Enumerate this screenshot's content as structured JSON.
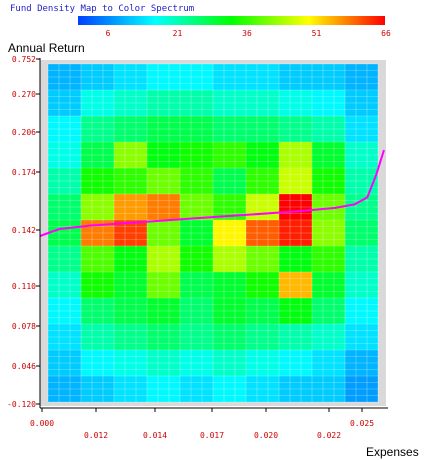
{
  "chart_data": {
    "type": "heatmap",
    "title": "Fund Density Map to Color Spectrum",
    "ylabel": "Annual Return",
    "xlabel": "Expenses",
    "colorbar": {
      "ticks": [
        "6",
        "21",
        "36",
        "51",
        "66"
      ],
      "range": [
        0,
        66
      ],
      "stops": [
        "#0040ff",
        "#00ffff",
        "#00ff00",
        "#ffff00",
        "#ff0000"
      ]
    },
    "y_ticks": [
      "0.752",
      "0.270",
      "0.206",
      "0.174",
      "0.142",
      "0.110",
      "0.078",
      "0.046",
      "-0.120"
    ],
    "x_ticks_row1": [
      "0.000",
      "0.025"
    ],
    "x_ticks_row2": [
      "0.012",
      "0.014",
      "0.017",
      "0.020",
      "0.022"
    ],
    "label_color": "#cc0000",
    "plot_background": "#d9d9d9",
    "grid_lines": true,
    "curve_color": "#ff00ff",
    "grid": [
      [
        10,
        12,
        14,
        16,
        16,
        14,
        14,
        12,
        12,
        10
      ],
      [
        12,
        18,
        20,
        22,
        22,
        20,
        20,
        18,
        16,
        12
      ],
      [
        16,
        24,
        26,
        28,
        28,
        26,
        26,
        24,
        22,
        14
      ],
      [
        18,
        28,
        42,
        32,
        34,
        36,
        32,
        44,
        30,
        20
      ],
      [
        22,
        34,
        36,
        40,
        36,
        28,
        36,
        46,
        34,
        22
      ],
      [
        26,
        42,
        56,
        58,
        40,
        36,
        46,
        66,
        40,
        24
      ],
      [
        28,
        58,
        62,
        40,
        30,
        50,
        60,
        64,
        42,
        26
      ],
      [
        24,
        38,
        32,
        44,
        34,
        44,
        40,
        32,
        36,
        22
      ],
      [
        20,
        34,
        30,
        40,
        28,
        30,
        34,
        54,
        30,
        20
      ],
      [
        16,
        26,
        28,
        30,
        26,
        30,
        28,
        32,
        26,
        16
      ],
      [
        14,
        22,
        24,
        26,
        24,
        26,
        24,
        22,
        20,
        14
      ],
      [
        12,
        16,
        18,
        20,
        18,
        20,
        18,
        16,
        14,
        10
      ],
      [
        10,
        12,
        14,
        16,
        14,
        16,
        14,
        12,
        12,
        8
      ]
    ],
    "curve": {
      "x": [
        0.0,
        0.0015,
        0.004,
        0.008,
        0.012,
        0.016,
        0.02,
        0.023,
        0.0245,
        0.0255,
        0.0262,
        0.0268
      ],
      "y": [
        0.14,
        0.144,
        0.146,
        0.148,
        0.15,
        0.152,
        0.154,
        0.156,
        0.158,
        0.162,
        0.175,
        0.189
      ]
    }
  }
}
